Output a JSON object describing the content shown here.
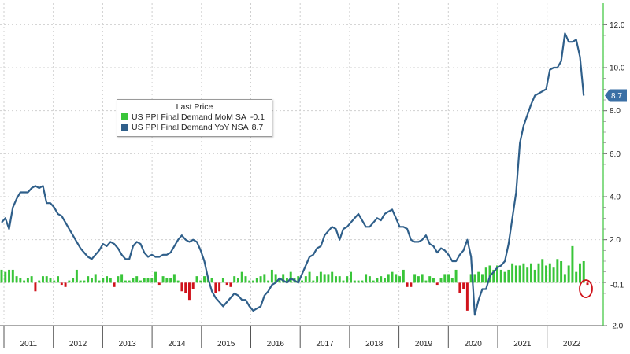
{
  "chart_data": {
    "type": "bar+line",
    "legend": {
      "title": "Last Price",
      "entries": [
        {
          "label": "US PPI Final Demand MoM SA",
          "value": "-0.1"
        },
        {
          "label": "US PPI Final Demand YoY NSA",
          "value": "8.7"
        }
      ]
    },
    "colors": {
      "mom_pos": "#39c539",
      "mom_neg": "#d0121b",
      "yoy": "#2f5f8a",
      "badge": "#3a6fa5",
      "grid": "#cfcfcf"
    },
    "y_axis": {
      "min": -2.0,
      "max": 13.0,
      "ticks": [
        "12.0",
        "10.0",
        "8.0",
        "6.0",
        "4.0",
        "2.0",
        "-2.0"
      ]
    },
    "x_axis": {
      "labels": [
        "2011",
        "2012",
        "2013",
        "2014",
        "2015",
        "2016",
        "2017",
        "2018",
        "2019",
        "2020",
        "2021",
        "2022"
      ]
    },
    "last_value_badges": [
      {
        "series": "US PPI Final Demand YoY NSA",
        "text": "8.7"
      },
      {
        "series": "US PPI Final Demand MoM SA",
        "text": "-0.1"
      }
    ],
    "series": [
      {
        "name": "US PPI Final Demand MoM SA",
        "kind": "bar",
        "values": [
          0.6,
          0.5,
          0.6,
          0.6,
          0.3,
          0.2,
          0.1,
          0.2,
          0.3,
          -0.4,
          0.1,
          0.3,
          0.3,
          0.2,
          0.1,
          0.3,
          -0.1,
          -0.2,
          0.1,
          0.2,
          0.6,
          0.1,
          0.1,
          0.3,
          0.2,
          0.4,
          0.1,
          0.2,
          0.3,
          0.2,
          -0.2,
          0.3,
          0.4,
          0.1,
          0.1,
          0.2,
          0.3,
          0.1,
          0.2,
          0.2,
          0.2,
          0.5,
          -0.1,
          0.3,
          0.2,
          0.2,
          0.4,
          0.1,
          -0.4,
          -0.5,
          -0.8,
          -0.3,
          0.3,
          0.1,
          0.3,
          0.2,
          0.2,
          -0.5,
          -0.4,
          0.2,
          -0.1,
          -0.2,
          0.3,
          0.2,
          0.5,
          0.3,
          0.1,
          0.1,
          0.2,
          0.3,
          0.4,
          0.1,
          0.6,
          0.4,
          0.2,
          0.4,
          0.2,
          0.5,
          0.2,
          0.3,
          0.1,
          0.3,
          0.5,
          0.1,
          0.3,
          0.5,
          0.4,
          0.4,
          0.5,
          0.3,
          0.3,
          0.1,
          0.3,
          0.5,
          0.1,
          0.1,
          0.1,
          0.4,
          0.3,
          0.1,
          0.2,
          0.3,
          0.2,
          0.4,
          0.5,
          0.4,
          0.3,
          0.6,
          -0.2,
          -0.2,
          0.4,
          0.3,
          0.4,
          0.1,
          0.3,
          0.2,
          -0.1,
          0.2,
          0.4,
          0.4,
          0.2,
          0.6,
          -0.5,
          -0.3,
          -1.3,
          0.4,
          0.4,
          0.5,
          0.4,
          0.7,
          0.8,
          0.6,
          0.8,
          0.6,
          0.5,
          0.6,
          0.9,
          0.8,
          0.8,
          0.9,
          0.7,
          0.9,
          0.6,
          0.9,
          1.1,
          0.8,
          0.9,
          0.7,
          1.1,
          1.0,
          0.4,
          0.8,
          1.7,
          0.5,
          0.9,
          1.0,
          -0.1
        ]
      },
      {
        "name": "US PPI Final Demand YoY NSA",
        "kind": "line",
        "values": [
          2.8,
          3.0,
          2.5,
          3.5,
          3.9,
          4.2,
          4.2,
          4.2,
          4.4,
          4.5,
          4.4,
          4.5,
          3.7,
          3.7,
          3.5,
          3.2,
          3.1,
          2.8,
          2.5,
          2.2,
          1.9,
          1.6,
          1.4,
          1.2,
          1.1,
          1.3,
          1.5,
          1.8,
          1.7,
          1.9,
          1.8,
          1.6,
          1.3,
          1.1,
          1.1,
          1.7,
          1.9,
          1.8,
          1.4,
          1.2,
          1.3,
          1.2,
          1.2,
          1.3,
          1.3,
          1.4,
          1.7,
          2.0,
          2.2,
          2.0,
          1.9,
          2.0,
          1.9,
          1.5,
          1.0,
          0.2,
          -0.4,
          -0.7,
          -0.9,
          -1.1,
          -0.9,
          -0.7,
          -0.5,
          -0.6,
          -0.8,
          -0.8,
          -1.1,
          -1.3,
          -1.2,
          -1.1,
          -0.6,
          -0.4,
          -0.1,
          0.0,
          0.2,
          0.1,
          0.0,
          0.2,
          0.1,
          0.0,
          0.4,
          0.8,
          1.2,
          1.3,
          1.6,
          1.7,
          2.2,
          2.4,
          2.6,
          2.5,
          2.0,
          2.5,
          2.6,
          2.8,
          3.0,
          3.2,
          2.9,
          2.6,
          2.6,
          2.8,
          3.0,
          2.9,
          3.2,
          3.3,
          3.4,
          3.0,
          2.6,
          2.6,
          2.5,
          2.0,
          1.9,
          1.9,
          2.0,
          2.2,
          1.8,
          1.7,
          1.4,
          1.6,
          1.5,
          1.3,
          1.0,
          1.0,
          1.3,
          1.5,
          2.0,
          1.2,
          -1.5,
          -0.8,
          -0.3,
          -0.3,
          0.3,
          0.5,
          0.7,
          0.8,
          1.0,
          1.8,
          3.0,
          4.2,
          6.5,
          7.3,
          7.8,
          8.3,
          8.7,
          8.8,
          8.9,
          9.0,
          9.9,
          10.0,
          10.0,
          10.3,
          11.6,
          11.2,
          11.2,
          11.3,
          10.5,
          8.7
        ]
      }
    ]
  }
}
